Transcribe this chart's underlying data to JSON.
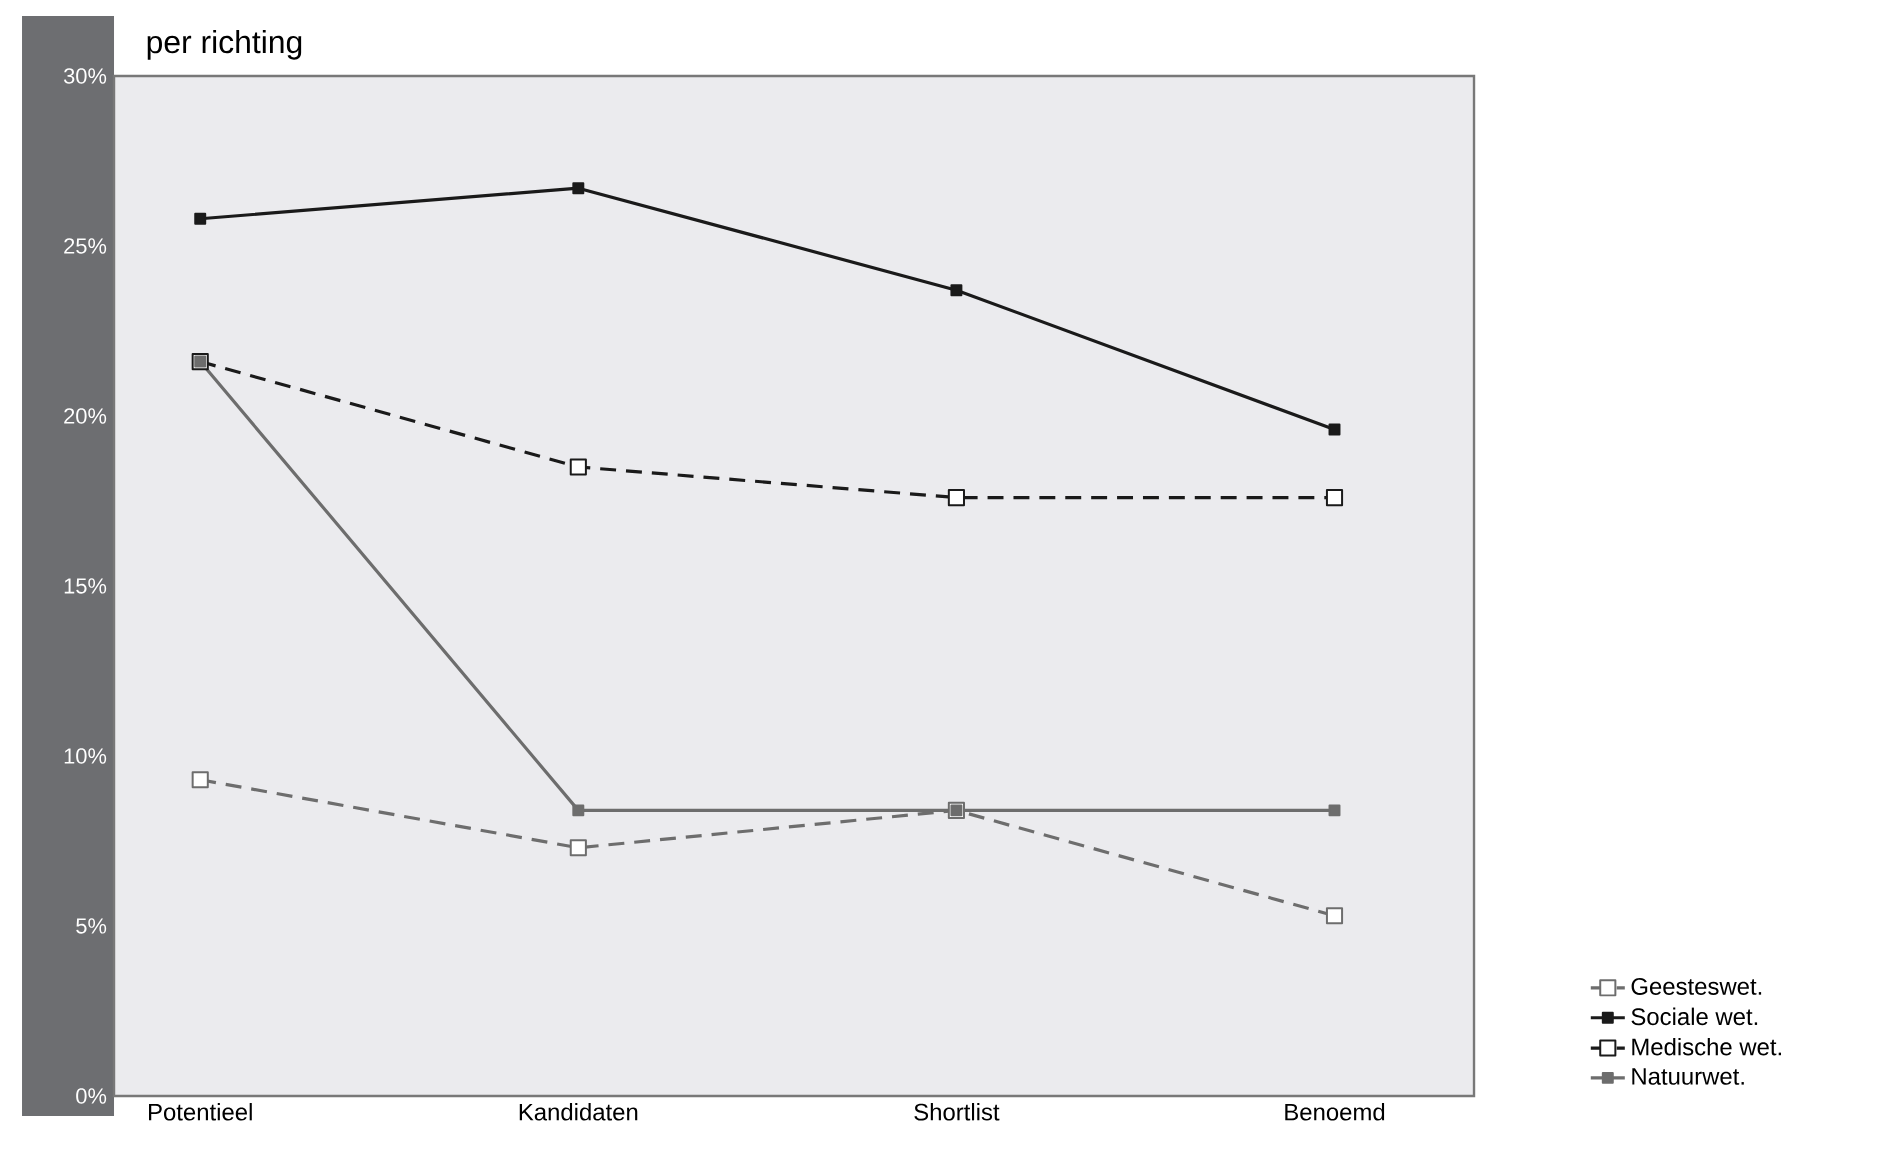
{
  "chart_data": {
    "type": "line",
    "title": "per richting",
    "categories": [
      "Potentieel",
      "Kandidaten",
      "Shortlist",
      "Benoemd"
    ],
    "series": [
      {
        "name": "Geesteswet.",
        "color": "#6d6d6d",
        "line_style": "dashed",
        "marker": "square",
        "values": [
          9.3,
          7.3,
          8.4,
          5.3
        ]
      },
      {
        "name": "Sociale wet.",
        "color": "#1a1a1a",
        "line_style": "solid",
        "marker": "square",
        "values": [
          25.8,
          26.7,
          23.7,
          19.6
        ]
      },
      {
        "name": "Medische wet.",
        "color": "#1a1a1a",
        "line_style": "dashed",
        "marker": "square",
        "values": [
          21.6,
          18.5,
          17.6,
          17.6
        ]
      },
      {
        "name": "Natuurwet.",
        "color": "#6d6d6d",
        "line_style": "solid",
        "marker": "square",
        "values": [
          21.6,
          8.4,
          8.4,
          8.4
        ]
      }
    ],
    "ylim": [
      0,
      30
    ],
    "yticks": [
      {
        "value": 0,
        "label": "0%"
      },
      {
        "value": 5,
        "label": "5%"
      },
      {
        "value": 10,
        "label": "10%"
      },
      {
        "value": 15,
        "label": "15%"
      },
      {
        "value": 20,
        "label": "20%"
      },
      {
        "value": 25,
        "label": "25%"
      },
      {
        "value": 30,
        "label": "30%"
      }
    ],
    "grid": false,
    "legend": "right"
  }
}
